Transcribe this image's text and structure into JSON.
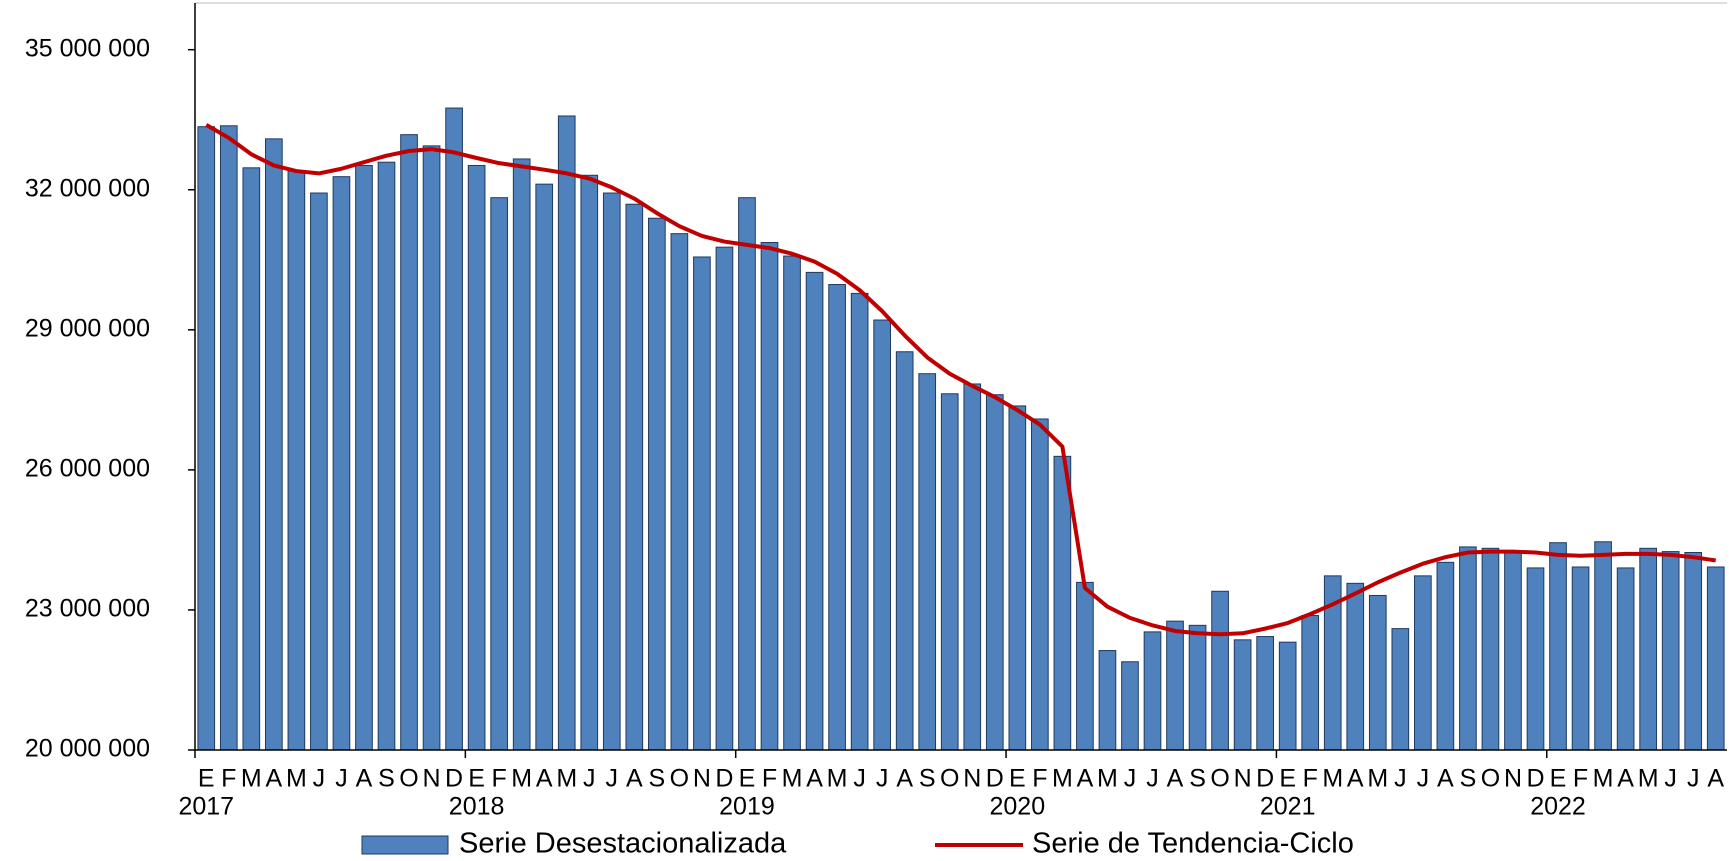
{
  "chart_data": {
    "type": "bar_line",
    "categories": [
      "E",
      "F",
      "M",
      "A",
      "M",
      "J",
      "J",
      "A",
      "S",
      "O",
      "N",
      "D",
      "E",
      "F",
      "M",
      "A",
      "M",
      "J",
      "J",
      "A",
      "S",
      "O",
      "N",
      "D",
      "E",
      "F",
      "M",
      "A",
      "M",
      "J",
      "J",
      "A",
      "S",
      "O",
      "N",
      "D",
      "E",
      "F",
      "M",
      "A",
      "M",
      "J",
      "J",
      "A",
      "S",
      "O",
      "N",
      "D",
      "E",
      "F",
      "M",
      "A",
      "M",
      "J",
      "J",
      "A",
      "S",
      "O",
      "N",
      "D",
      "E",
      "F",
      "M",
      "A",
      "M",
      "J",
      "J",
      "A"
    ],
    "years": [
      "2017",
      "2018",
      "2019",
      "2020",
      "2021",
      "2022"
    ],
    "series": [
      {
        "name": "Serie Desestacionalizada",
        "kind": "bar",
        "color": "#4f81bd",
        "values": [
          33350000,
          33370000,
          32470000,
          33090000,
          32400000,
          31930000,
          32280000,
          32520000,
          32590000,
          33180000,
          32940000,
          33750000,
          32520000,
          31830000,
          32660000,
          32120000,
          33580000,
          32310000,
          31930000,
          31690000,
          31390000,
          31060000,
          30560000,
          30770000,
          31830000,
          30870000,
          30580000,
          30230000,
          29970000,
          29780000,
          29210000,
          28530000,
          28060000,
          27630000,
          27840000,
          27610000,
          27370000,
          27090000,
          26290000,
          23590000,
          22130000,
          21890000,
          22530000,
          22760000,
          22670000,
          23400000,
          22360000,
          22430000,
          22310000,
          22880000,
          23730000,
          23570000,
          23310000,
          22600000,
          23730000,
          24020000,
          24350000,
          24320000,
          24250000,
          23900000,
          24440000,
          23920000,
          24460000,
          23900000,
          24320000,
          24250000,
          24230000,
          23920000
        ]
      },
      {
        "name": "Serie de Tendencia-Ciclo",
        "kind": "line",
        "color": "#c00000",
        "values": [
          33390000,
          33110000,
          32760000,
          32520000,
          32400000,
          32350000,
          32450000,
          32590000,
          32730000,
          32830000,
          32870000,
          32800000,
          32680000,
          32570000,
          32500000,
          32430000,
          32350000,
          32240000,
          32050000,
          31810000,
          31500000,
          31220000,
          31010000,
          30890000,
          30820000,
          30750000,
          30630000,
          30460000,
          30200000,
          29850000,
          29400000,
          28880000,
          28410000,
          28060000,
          27800000,
          27560000,
          27280000,
          26970000,
          26500000,
          23470000,
          23070000,
          22830000,
          22670000,
          22550000,
          22500000,
          22480000,
          22500000,
          22600000,
          22720000,
          22910000,
          23120000,
          23350000,
          23590000,
          23800000,
          23990000,
          24130000,
          24230000,
          24250000,
          24250000,
          24230000,
          24180000,
          24160000,
          24180000,
          24200000,
          24200000,
          24180000,
          24130000,
          24060000
        ]
      }
    ],
    "ylim": [
      20000000,
      36000000
    ],
    "yticks": [
      {
        "value": 20000000,
        "label": "20 000 000"
      },
      {
        "value": 23000000,
        "label": "23 000 000"
      },
      {
        "value": 26000000,
        "label": "26 000 000"
      },
      {
        "value": 29000000,
        "label": "29 000 000"
      },
      {
        "value": 32000000,
        "label": "32 000 000"
      },
      {
        "value": 35000000,
        "label": "35 000 000"
      }
    ],
    "grid": false
  }
}
